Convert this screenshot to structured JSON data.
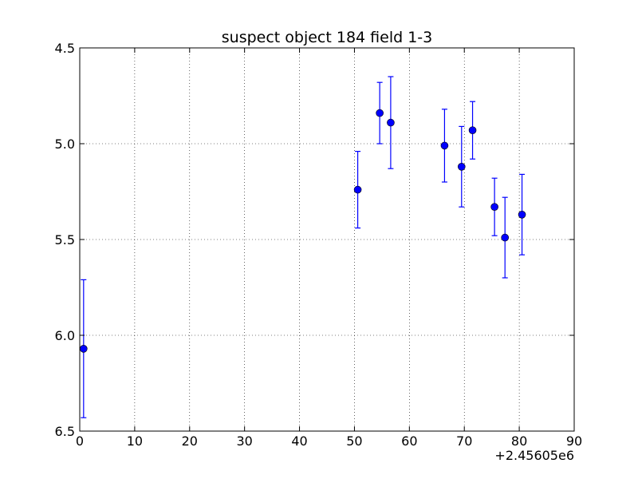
{
  "chart_data": {
    "type": "scatter",
    "title": "suspect object 184 field 1-3",
    "xlabel": "",
    "ylabel": "",
    "x_offset_label": "+2.45605e6",
    "xlim": [
      0,
      90
    ],
    "ylim": [
      4.5,
      6.5
    ],
    "y_inverted": true,
    "grid": true,
    "x_ticks": [
      0,
      10,
      20,
      30,
      40,
      50,
      60,
      70,
      80,
      90
    ],
    "y_ticks": [
      4.5,
      5.0,
      5.5,
      6.0,
      6.5
    ],
    "x_tick_labels": [
      "0",
      "10",
      "20",
      "30",
      "40",
      "50",
      "60",
      "70",
      "80",
      "90"
    ],
    "y_tick_labels": [
      "4.5",
      "5.0",
      "5.5",
      "6.0",
      "6.5"
    ],
    "marker_color": "#0000ff",
    "series": [
      {
        "points": [
          {
            "x": 0.7,
            "y": 6.07,
            "yerr": 0.36
          },
          {
            "x": 50.6,
            "y": 5.24,
            "yerr": 0.2
          },
          {
            "x": 54.6,
            "y": 4.84,
            "yerr": 0.16
          },
          {
            "x": 56.6,
            "y": 4.89,
            "yerr": 0.24
          },
          {
            "x": 66.4,
            "y": 5.01,
            "yerr": 0.19
          },
          {
            "x": 69.5,
            "y": 5.12,
            "yerr": 0.21
          },
          {
            "x": 71.5,
            "y": 4.93,
            "yerr": 0.15
          },
          {
            "x": 75.5,
            "y": 5.33,
            "yerr": 0.15
          },
          {
            "x": 77.4,
            "y": 5.49,
            "yerr": 0.21
          },
          {
            "x": 80.5,
            "y": 5.37,
            "yerr": 0.21
          }
        ]
      }
    ]
  }
}
